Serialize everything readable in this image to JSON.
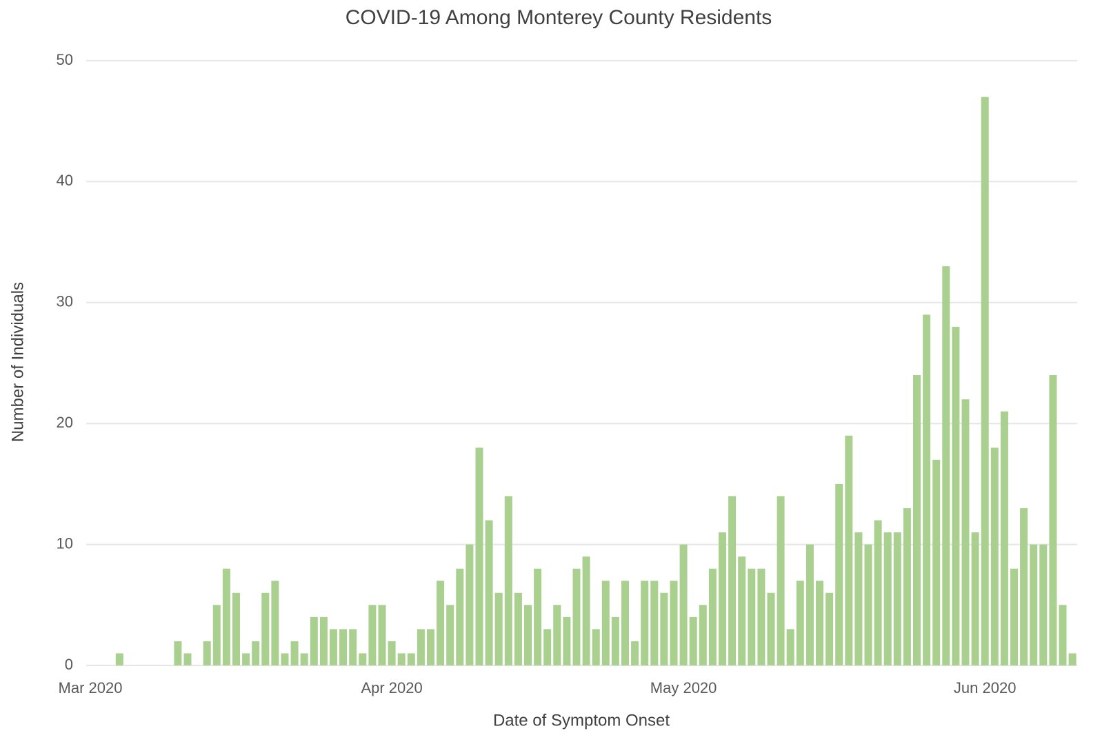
{
  "chart_data": {
    "type": "bar",
    "title": "COVID-19 Among Monterey County Residents",
    "x_label": "Date of Symptom Onset",
    "y_label": "Number of Individuals",
    "categories": [
      "Mar 2020",
      null,
      null,
      null,
      null,
      null,
      null,
      null,
      null,
      null,
      null,
      null,
      null,
      null,
      null,
      null,
      null,
      null,
      null,
      null,
      null,
      null,
      null,
      null,
      null,
      null,
      null,
      null,
      null,
      null,
      null,
      "Apr 2020",
      null,
      null,
      null,
      null,
      null,
      null,
      null,
      null,
      null,
      null,
      null,
      null,
      null,
      null,
      null,
      null,
      null,
      null,
      null,
      null,
      null,
      null,
      null,
      null,
      null,
      null,
      null,
      null,
      null,
      "May 2020",
      null,
      null,
      null,
      null,
      null,
      null,
      null,
      null,
      null,
      null,
      null,
      null,
      null,
      null,
      null,
      null,
      null,
      null,
      null,
      null,
      null,
      null,
      null,
      null,
      null,
      null,
      null,
      null,
      null,
      null,
      "Jun 2020",
      null,
      null,
      null,
      null,
      null,
      null,
      null,
      null,
      null
    ],
    "values": [
      0,
      0,
      0,
      1,
      0,
      0,
      0,
      0,
      0,
      2,
      1,
      0,
      2,
      5,
      8,
      6,
      1,
      2,
      6,
      7,
      1,
      2,
      1,
      4,
      4,
      3,
      3,
      3,
      1,
      5,
      5,
      2,
      1,
      1,
      3,
      3,
      7,
      5,
      8,
      10,
      18,
      12,
      6,
      14,
      6,
      5,
      8,
      3,
      5,
      4,
      8,
      9,
      3,
      7,
      4,
      7,
      2,
      7,
      7,
      6,
      7,
      10,
      4,
      5,
      8,
      11,
      14,
      9,
      8,
      8,
      6,
      14,
      3,
      7,
      10,
      7,
      6,
      15,
      19,
      11,
      10,
      12,
      11,
      11,
      13,
      24,
      29,
      17,
      33,
      28,
      22,
      11,
      47,
      18,
      21,
      8,
      13,
      10,
      10,
      24,
      5,
      1
    ],
    "color": "#a9d08e",
    "ylim": [
      0,
      50
    ],
    "yticks": [
      0,
      10,
      20,
      30,
      40,
      50
    ],
    "grid": true
  }
}
